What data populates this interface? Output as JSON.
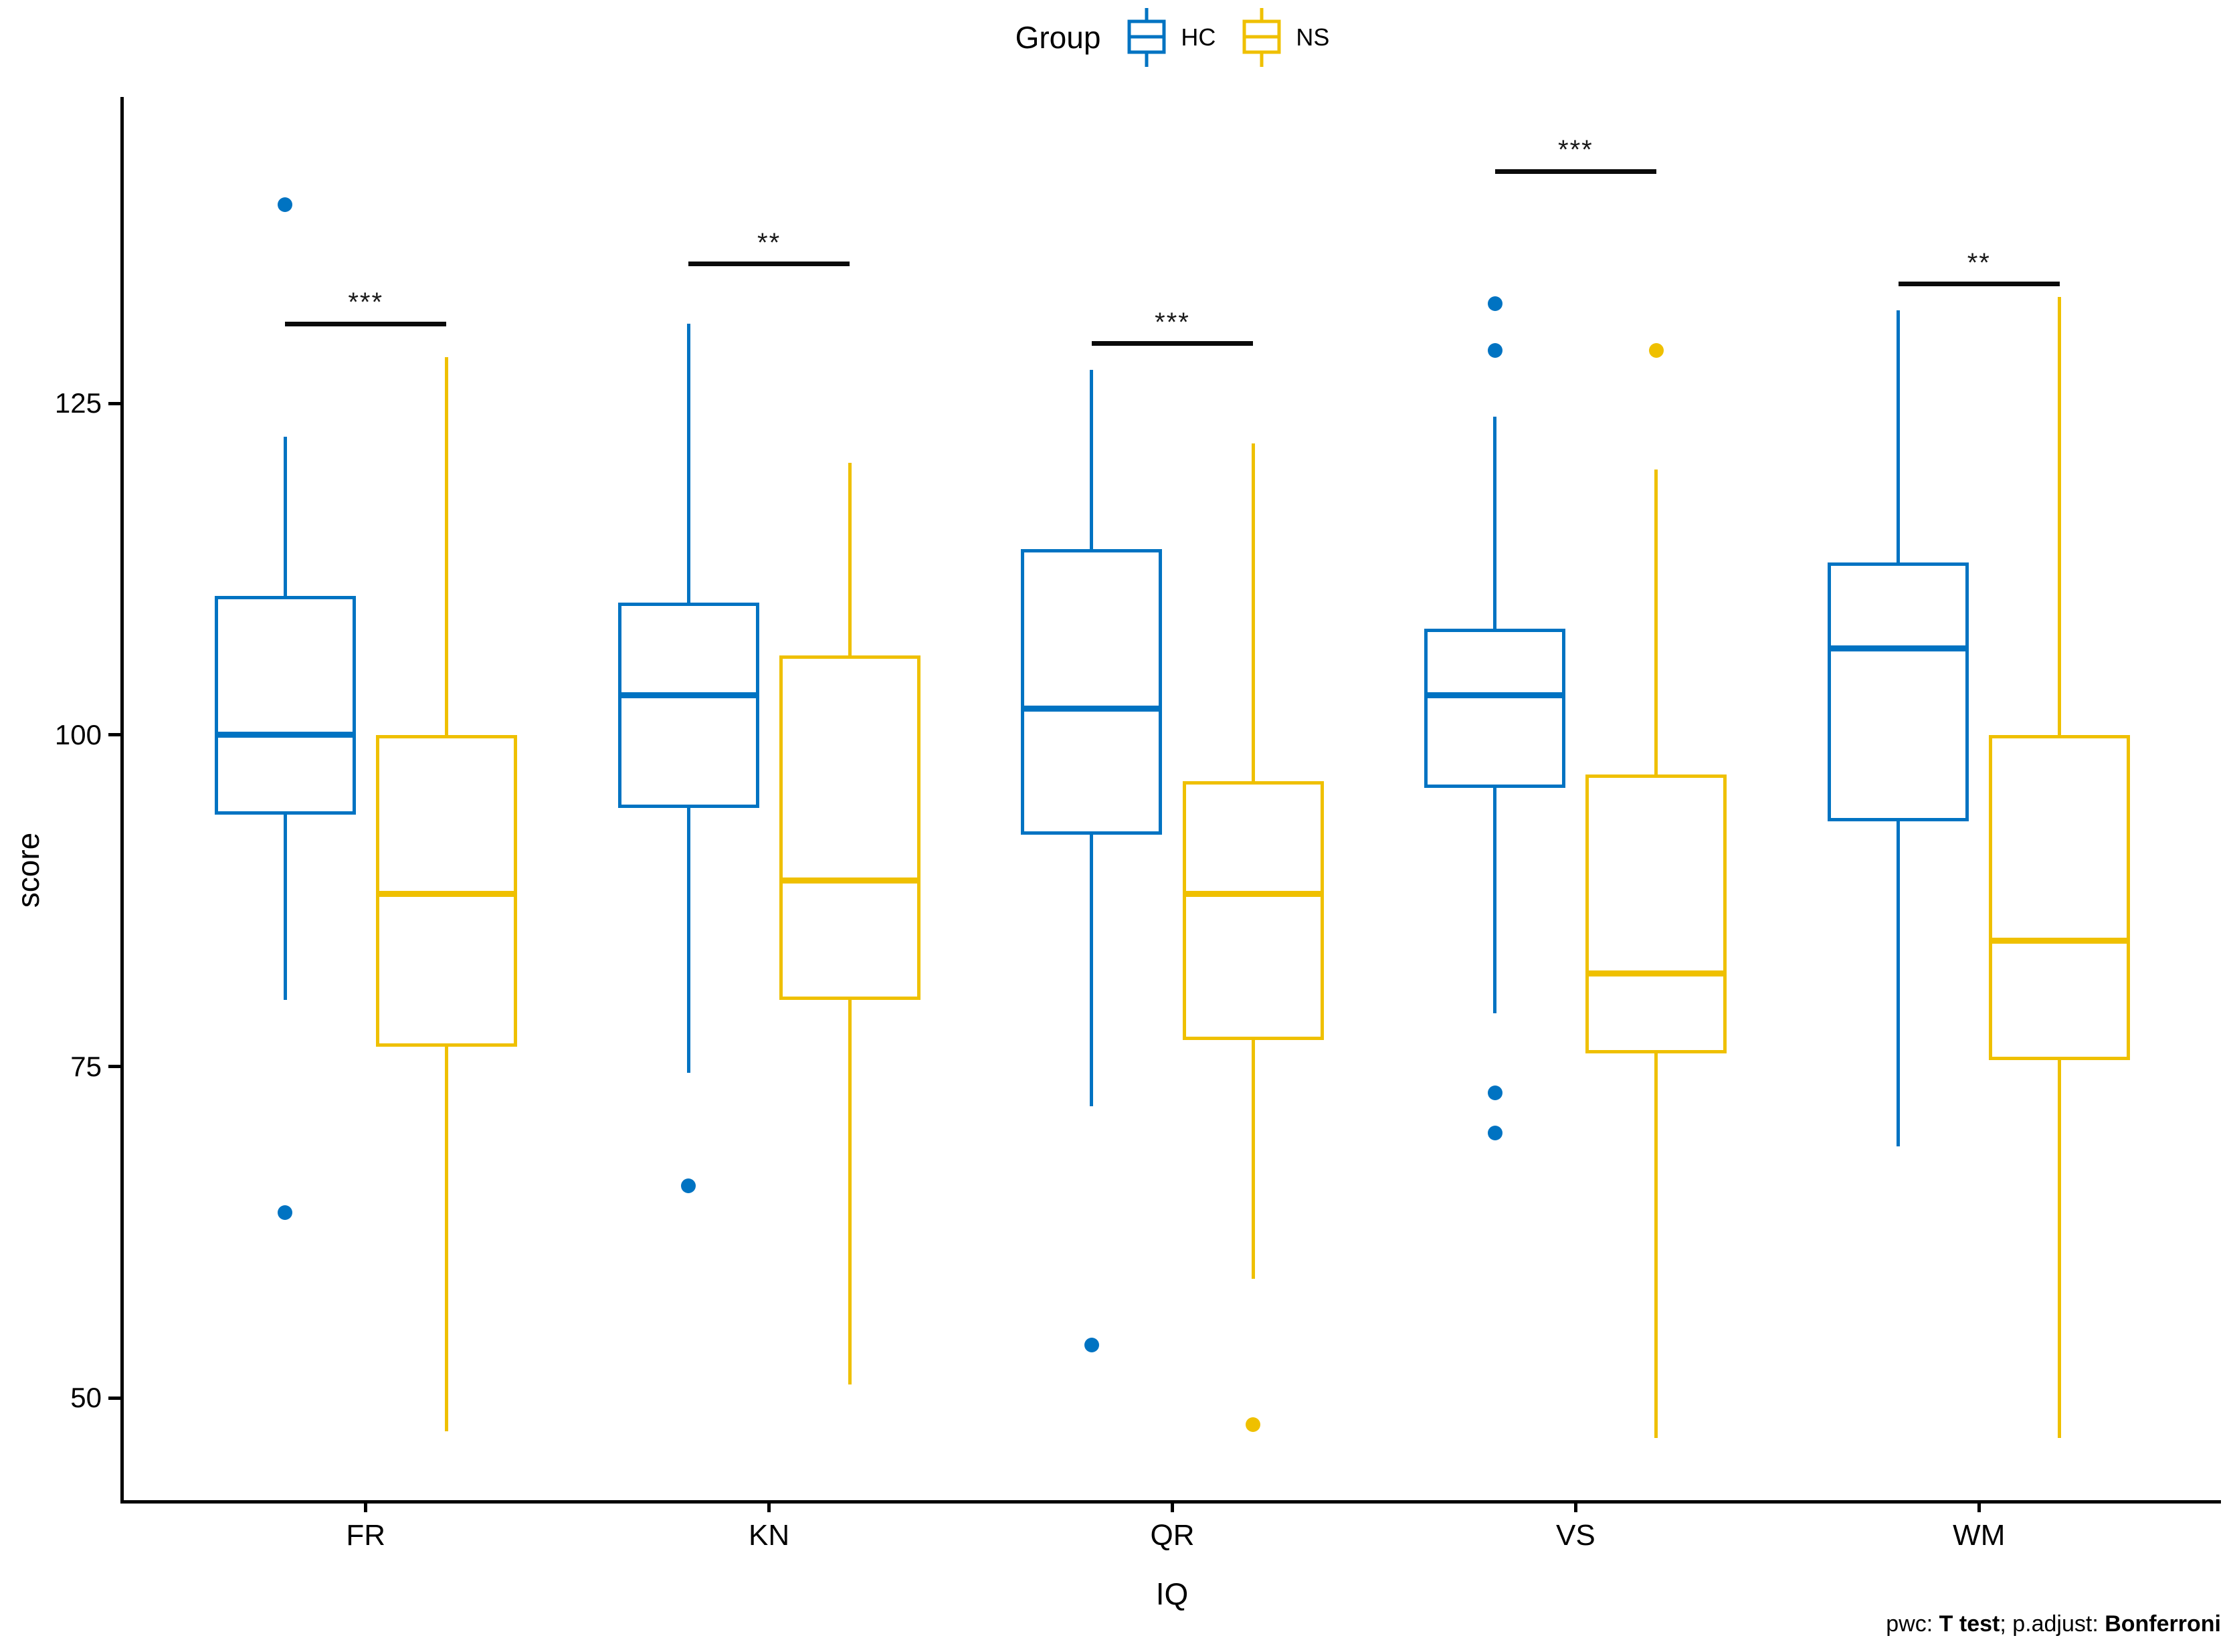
{
  "legend": {
    "title": "Group",
    "items": [
      {
        "label": "HC",
        "color": "#0073C2"
      },
      {
        "label": "NS",
        "color": "#EFC000"
      }
    ]
  },
  "axes": {
    "y_label": "score",
    "x_label": "IQ",
    "y_ticks": [
      125,
      100,
      75,
      50
    ],
    "x_categories": [
      "FR",
      "KN",
      "QR",
      "VS",
      "WM"
    ],
    "y_range_min": 42.3,
    "y_range_max": 148.1
  },
  "caption": {
    "pwc_prefix": "pwc: ",
    "pwc_method": "T test",
    "adjust_prefix": "; p.adjust: ",
    "adjust_method": "Bonferroni"
  },
  "chart_data": {
    "type": "grouped_boxplot",
    "title": "",
    "xlabel": "IQ",
    "ylabel": "score",
    "ylim": [
      42.3,
      148.1
    ],
    "grid": false,
    "legend_position": "top",
    "categories": [
      "FR",
      "KN",
      "QR",
      "VS",
      "WM"
    ],
    "groups": [
      "HC",
      "NS"
    ],
    "colors": {
      "HC": "#0073C2",
      "NS": "#EFC000"
    },
    "series": [
      {
        "category": "FR",
        "group": "HC",
        "whisker_low": 80,
        "q1": 94,
        "median": 100,
        "q3": 110.5,
        "whisker_high": 122.5,
        "outliers": [
          140,
          64
        ]
      },
      {
        "category": "FR",
        "group": "NS",
        "whisker_low": 47.5,
        "q1": 76.5,
        "median": 88,
        "q3": 100,
        "whisker_high": 128.5,
        "outliers": []
      },
      {
        "category": "KN",
        "group": "HC",
        "whisker_low": 74.5,
        "q1": 94.5,
        "median": 103,
        "q3": 110,
        "whisker_high": 131,
        "outliers": [
          66
        ]
      },
      {
        "category": "KN",
        "group": "NS",
        "whisker_low": 51,
        "q1": 80,
        "median": 89,
        "q3": 106,
        "whisker_high": 120.5,
        "outliers": []
      },
      {
        "category": "QR",
        "group": "HC",
        "whisker_low": 72,
        "q1": 92.5,
        "median": 102,
        "q3": 114,
        "whisker_high": 127.5,
        "outliers": [
          54
        ]
      },
      {
        "category": "QR",
        "group": "NS",
        "whisker_low": 59,
        "q1": 77,
        "median": 88,
        "q3": 96.5,
        "whisker_high": 122,
        "outliers": [
          48
        ]
      },
      {
        "category": "VS",
        "group": "HC",
        "whisker_low": 79,
        "q1": 96,
        "median": 103,
        "q3": 108,
        "whisker_high": 124,
        "outliers": [
          132.5,
          129,
          73,
          70
        ]
      },
      {
        "category": "VS",
        "group": "NS",
        "whisker_low": 47,
        "q1": 76,
        "median": 82,
        "q3": 97,
        "whisker_high": 120,
        "outliers": [
          129
        ]
      },
      {
        "category": "WM",
        "group": "HC",
        "whisker_low": 69,
        "q1": 93.5,
        "median": 106.5,
        "q3": 113,
        "whisker_high": 132,
        "outliers": []
      },
      {
        "category": "WM",
        "group": "NS",
        "whisker_low": 47,
        "q1": 75.5,
        "median": 84.5,
        "q3": 100,
        "whisker_high": 133,
        "outliers": []
      }
    ],
    "significance": [
      {
        "category": "FR",
        "label": "***",
        "y": 131
      },
      {
        "category": "KN",
        "label": "**",
        "y": 135.5
      },
      {
        "category": "QR",
        "label": "***",
        "y": 129.5
      },
      {
        "category": "VS",
        "label": "***",
        "y": 142.5
      },
      {
        "category": "WM",
        "label": "**",
        "y": 134
      }
    ]
  }
}
